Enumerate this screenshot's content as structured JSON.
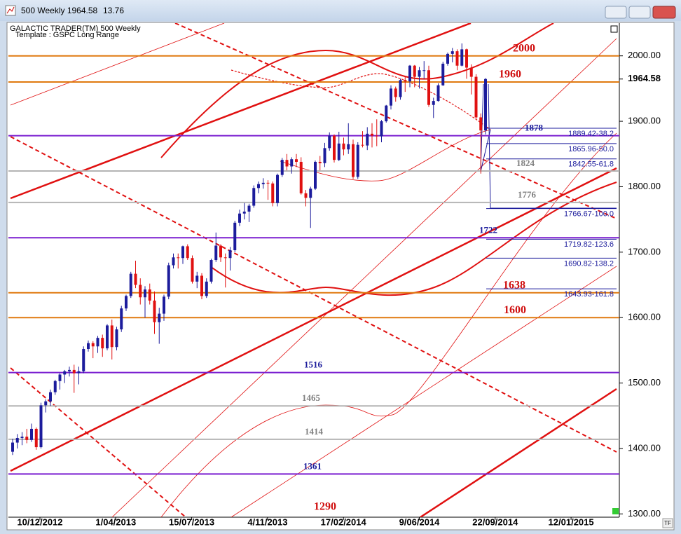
{
  "window": {
    "title": "500 Weekly 1964.58",
    "change": "13.76",
    "tf": "TF"
  },
  "chart_data": {
    "type": "candlestick",
    "title": "GALACTIC TRADER(TM)    500 Weekly",
    "subtitle": "Template : GSPC Long Range",
    "up_color": "#1c1c9c",
    "down_color": "#e01010",
    "ylim": [
      1295,
      2050
    ],
    "yticks": [
      {
        "value": 2000,
        "label": "2000.00"
      },
      {
        "value": 1900,
        "label": "1900.00"
      },
      {
        "value": 1800,
        "label": "1800.00"
      },
      {
        "value": 1700,
        "label": "1700.00"
      },
      {
        "value": 1600,
        "label": "1600.00"
      },
      {
        "value": 1500,
        "label": "1500.00"
      },
      {
        "value": 1400,
        "label": "1400.00"
      },
      {
        "value": 1300,
        "label": "1300.00"
      }
    ],
    "last_price": 1964.58,
    "xticks": [
      "10/12/2012",
      "1/04/2013",
      "15/07/2013",
      "4/11/2013",
      "17/02/2014",
      "9/06/2014",
      "22/09/2014",
      "12/01/2015"
    ],
    "levels": [
      {
        "value": 2000,
        "color": "#e07a10",
        "label_color": "#d01010"
      },
      {
        "value": 1960,
        "color": "#e07a10",
        "label_color": "#d01010"
      },
      {
        "value": 1878,
        "color": "#7a1ed0",
        "label_color": "#1c1c9c"
      },
      {
        "value": 1824,
        "color": "#b4b4b4",
        "label_color": "#808080"
      },
      {
        "value": 1776,
        "color": "#b4b4b4",
        "label_color": "#808080"
      },
      {
        "value": 1722,
        "color": "#7a1ed0",
        "label_color": "#1c1c9c"
      },
      {
        "value": 1638,
        "color": "#e07a10",
        "label_color": "#d01010"
      },
      {
        "value": 1600,
        "color": "#e07a10",
        "label_color": "#d01010"
      },
      {
        "value": 1516,
        "color": "#7a1ed0",
        "label_color": "#1c1c9c"
      },
      {
        "value": 1465,
        "color": "#b4b4b4",
        "label_color": "#808080"
      },
      {
        "value": 1414,
        "color": "#b4b4b4",
        "label_color": "#808080"
      },
      {
        "value": 1361,
        "color": "#7a1ed0",
        "label_color": "#1c1c9c"
      },
      {
        "value": 1290,
        "color": "#e07a10",
        "label_color": "#d01010"
      }
    ],
    "fib_levels": [
      {
        "value": 1889.42,
        "label": "1889.42-38.2"
      },
      {
        "value": 1865.96,
        "label": "1865.96-50.0"
      },
      {
        "value": 1842.55,
        "label": "1842.55-61.8"
      },
      {
        "value": 1766.67,
        "label": "1766.67-100.0"
      },
      {
        "value": 1719.82,
        "label": "1719.82-123.6"
      },
      {
        "value": 1690.82,
        "label": "1690.82-138.2"
      },
      {
        "value": 1643.93,
        "label": "1643.93-161.8"
      }
    ],
    "candles": [
      [
        1395,
        1415,
        1390,
        1409
      ],
      [
        1409,
        1422,
        1400,
        1416
      ],
      [
        1416,
        1425,
        1405,
        1418
      ],
      [
        1418,
        1430,
        1408,
        1413
      ],
      [
        1413,
        1438,
        1410,
        1430
      ],
      [
        1430,
        1432,
        1398,
        1402
      ],
      [
        1402,
        1470,
        1400,
        1466
      ],
      [
        1466,
        1475,
        1455,
        1472
      ],
      [
        1472,
        1490,
        1465,
        1486
      ],
      [
        1486,
        1505,
        1482,
        1503
      ],
      [
        1503,
        1515,
        1490,
        1513
      ],
      [
        1513,
        1520,
        1500,
        1518
      ],
      [
        1518,
        1525,
        1510,
        1520
      ],
      [
        1520,
        1528,
        1485,
        1515
      ],
      [
        1515,
        1525,
        1498,
        1518
      ],
      [
        1518,
        1556,
        1515,
        1552
      ],
      [
        1552,
        1565,
        1548,
        1561
      ],
      [
        1561,
        1564,
        1538,
        1556
      ],
      [
        1556,
        1572,
        1546,
        1569
      ],
      [
        1569,
        1574,
        1540,
        1553
      ],
      [
        1553,
        1590,
        1550,
        1588
      ],
      [
        1588,
        1597,
        1536,
        1555
      ],
      [
        1555,
        1586,
        1550,
        1582
      ],
      [
        1582,
        1618,
        1578,
        1614
      ],
      [
        1614,
        1635,
        1610,
        1633
      ],
      [
        1633,
        1670,
        1630,
        1667
      ],
      [
        1667,
        1687,
        1645,
        1650
      ],
      [
        1650,
        1660,
        1620,
        1631
      ],
      [
        1631,
        1648,
        1600,
        1643
      ],
      [
        1643,
        1652,
        1620,
        1626
      ],
      [
        1626,
        1640,
        1575,
        1593
      ],
      [
        1593,
        1615,
        1560,
        1606
      ],
      [
        1606,
        1635,
        1595,
        1632
      ],
      [
        1632,
        1684,
        1628,
        1680
      ],
      [
        1680,
        1698,
        1675,
        1692
      ],
      [
        1692,
        1698,
        1675,
        1691
      ],
      [
        1691,
        1710,
        1682,
        1709
      ],
      [
        1709,
        1712,
        1688,
        1691
      ],
      [
        1691,
        1695,
        1652,
        1655
      ],
      [
        1655,
        1670,
        1645,
        1664
      ],
      [
        1664,
        1668,
        1628,
        1633
      ],
      [
        1633,
        1660,
        1630,
        1655
      ],
      [
        1655,
        1690,
        1652,
        1688
      ],
      [
        1688,
        1730,
        1685,
        1710
      ],
      [
        1710,
        1712,
        1685,
        1692
      ],
      [
        1692,
        1698,
        1646,
        1691
      ],
      [
        1691,
        1708,
        1672,
        1703
      ],
      [
        1703,
        1748,
        1700,
        1745
      ],
      [
        1745,
        1765,
        1740,
        1759
      ],
      [
        1759,
        1775,
        1750,
        1762
      ],
      [
        1762,
        1774,
        1746,
        1771
      ],
      [
        1771,
        1802,
        1768,
        1798
      ],
      [
        1798,
        1808,
        1790,
        1804
      ],
      [
        1804,
        1813,
        1797,
        1806
      ],
      [
        1806,
        1810,
        1780,
        1805
      ],
      [
        1805,
        1808,
        1770,
        1775
      ],
      [
        1775,
        1820,
        1770,
        1818
      ],
      [
        1818,
        1844,
        1815,
        1841
      ],
      [
        1841,
        1850,
        1825,
        1831
      ],
      [
        1831,
        1845,
        1820,
        1842
      ],
      [
        1842,
        1850,
        1830,
        1838
      ],
      [
        1838,
        1845,
        1788,
        1790
      ],
      [
        1790,
        1795,
        1770,
        1783
      ],
      [
        1783,
        1800,
        1737,
        1797
      ],
      [
        1797,
        1840,
        1795,
        1838
      ],
      [
        1838,
        1847,
        1825,
        1836
      ],
      [
        1836,
        1867,
        1830,
        1859
      ],
      [
        1859,
        1883,
        1855,
        1878
      ],
      [
        1878,
        1880,
        1837,
        1841
      ],
      [
        1841,
        1884,
        1839,
        1866
      ],
      [
        1866,
        1875,
        1848,
        1857
      ],
      [
        1857,
        1897,
        1850,
        1865
      ],
      [
        1865,
        1872,
        1812,
        1815
      ],
      [
        1815,
        1868,
        1812,
        1864
      ],
      [
        1864,
        1885,
        1860,
        1863
      ],
      [
        1863,
        1891,
        1856,
        1881
      ],
      [
        1881,
        1897,
        1860,
        1878
      ],
      [
        1878,
        1903,
        1862,
        1877
      ],
      [
        1877,
        1902,
        1868,
        1900
      ],
      [
        1900,
        1925,
        1898,
        1924
      ],
      [
        1924,
        1955,
        1918,
        1950
      ],
      [
        1950,
        1953,
        1930,
        1937
      ],
      [
        1937,
        1965,
        1933,
        1963
      ],
      [
        1963,
        1968,
        1945,
        1961
      ],
      [
        1961,
        1986,
        1952,
        1985
      ],
      [
        1985,
        1986,
        1952,
        1968
      ],
      [
        1968,
        1983,
        1950,
        1978
      ],
      [
        1978,
        1992,
        1965,
        1978
      ],
      [
        1978,
        1985,
        1922,
        1925
      ],
      [
        1925,
        1936,
        1905,
        1931
      ],
      [
        1931,
        1958,
        1930,
        1955
      ],
      [
        1955,
        1991,
        1954,
        1988
      ],
      [
        1988,
        2005,
        1985,
        2003
      ],
      [
        2003,
        2012,
        1990,
        2007
      ],
      [
        2007,
        2010,
        1978,
        1985
      ],
      [
        1985,
        2019,
        1984,
        2010
      ],
      [
        2010,
        2011,
        1965,
        1982
      ],
      [
        1982,
        1987,
        1941,
        1968
      ],
      [
        1968,
        1972,
        1904,
        1906
      ],
      [
        1906,
        1912,
        1820,
        1886
      ],
      [
        1886,
        1966,
        1880,
        1964.58
      ]
    ]
  }
}
